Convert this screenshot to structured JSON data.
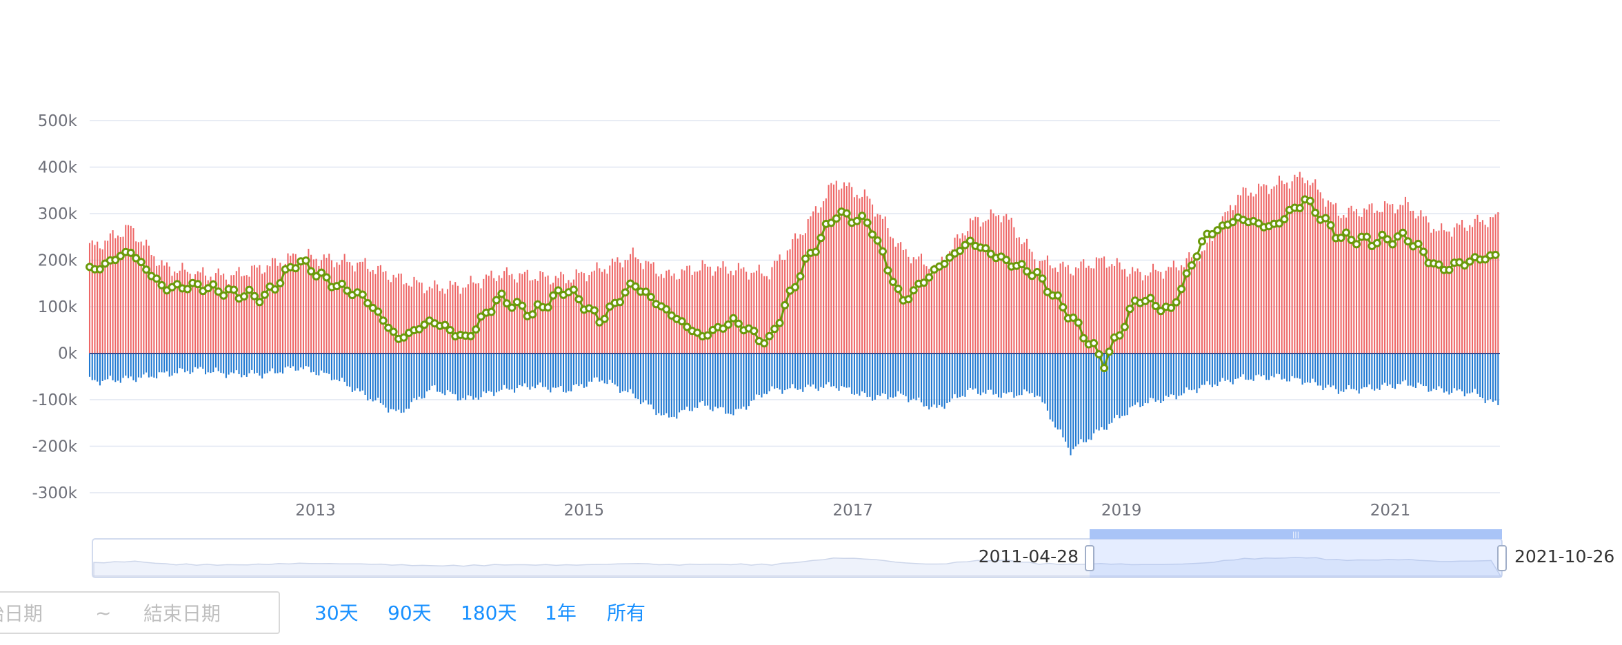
{
  "chart_data": {
    "type": "bar+line",
    "y_axis": {
      "ticks": [
        "500k",
        "400k",
        "300k",
        "200k",
        "100k",
        "0k",
        "-100k",
        "-200k",
        "-300k"
      ],
      "range": [
        -300000,
        500000
      ]
    },
    "x_axis": {
      "ticks": [
        {
          "label": "2013",
          "date": "2013-01-01"
        },
        {
          "label": "2015",
          "date": "2015-01-01"
        },
        {
          "label": "2017",
          "date": "2017-01-01"
        },
        {
          "label": "2019",
          "date": "2019-01-01"
        },
        {
          "label": "2021",
          "date": "2021-01-01"
        }
      ],
      "range": [
        "2011-04-28",
        "2021-10-26"
      ]
    },
    "anchors": {
      "dates": [
        "2011-05",
        "2011-08",
        "2011-11",
        "2012-02",
        "2012-05",
        "2012-08",
        "2012-11",
        "2013-02",
        "2013-05",
        "2013-08",
        "2013-11",
        "2014-02",
        "2014-05",
        "2014-08",
        "2014-11",
        "2015-02",
        "2015-05",
        "2015-08",
        "2015-11",
        "2016-02",
        "2016-05",
        "2016-08",
        "2016-11",
        "2017-02",
        "2017-05",
        "2017-08",
        "2017-11",
        "2018-02",
        "2018-05",
        "2018-08",
        "2018-11",
        "2019-02",
        "2019-05",
        "2019-08",
        "2019-11",
        "2020-02",
        "2020-05",
        "2020-08",
        "2020-11",
        "2021-02",
        "2021-05",
        "2021-08",
        "2021-10"
      ],
      "positive": [
        230000,
        270000,
        185000,
        170000,
        165000,
        185000,
        210000,
        200000,
        190000,
        160000,
        140000,
        145000,
        170000,
        165000,
        160000,
        180000,
        210000,
        165000,
        185000,
        180000,
        170000,
        260000,
        370000,
        330000,
        220000,
        180000,
        280000,
        300000,
        200000,
        180000,
        200000,
        170000,
        180000,
        220000,
        340000,
        360000,
        380000,
        300000,
        310000,
        320000,
        260000,
        280000,
        290000
      ],
      "negative": [
        -60000,
        -55000,
        -45000,
        -35000,
        -45000,
        -45000,
        -30000,
        -50000,
        -90000,
        -130000,
        -75000,
        -100000,
        -80000,
        -70000,
        -80000,
        -55000,
        -90000,
        -140000,
        -110000,
        -130000,
        -80000,
        -75000,
        -70000,
        -95000,
        -90000,
        -120000,
        -80000,
        -90000,
        -85000,
        -210000,
        -160000,
        -110000,
        -95000,
        -70000,
        -55000,
        -50000,
        -60000,
        -80000,
        -75000,
        -65000,
        -80000,
        -85000,
        -110000
      ],
      "net": [
        180000,
        220000,
        140000,
        145000,
        130000,
        120000,
        200000,
        150000,
        120000,
        30000,
        70000,
        30000,
        120000,
        85000,
        140000,
        70000,
        150000,
        90000,
        35000,
        70000,
        20000,
        180000,
        300000,
        280000,
        110000,
        180000,
        240000,
        200000,
        170000,
        80000,
        -20000,
        120000,
        90000,
        250000,
        290000,
        270000,
        330000,
        250000,
        240000,
        250000,
        180000,
        200000,
        210000
      ]
    },
    "series": [
      {
        "style": "bar",
        "color": "#ee6666"
      },
      {
        "style": "bar",
        "color": "#1f78d1"
      },
      {
        "style": "line",
        "color": "#6a9a0a"
      }
    ],
    "datazoom": {
      "start_label": "2011-04-28",
      "end_label": "2021-10-26"
    }
  },
  "date_range": {
    "start_placeholder": "始日期",
    "separator": "~",
    "end_placeholder": "結束日期"
  },
  "quick_ranges": [
    "30天",
    "90天",
    "180天",
    "1年",
    "所有"
  ]
}
